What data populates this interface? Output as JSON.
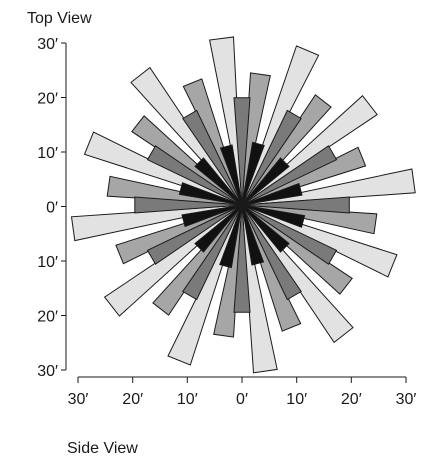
{
  "title_top": "Top View",
  "title_side": "Side View",
  "axis": {
    "y_ticks": [
      "30′",
      "20′",
      "10′",
      "0′",
      "10′",
      "20′",
      "30′"
    ],
    "x_ticks": [
      "30′",
      "20′",
      "10′",
      "0′",
      "10′",
      "20′",
      "30′"
    ]
  },
  "rose": {
    "colors": {
      "light": "#e2e2e2",
      "mid": "#a6a6a6",
      "dark": "#7a7a7a",
      "black": "#111111",
      "stroke": "#1a1a1a"
    },
    "light": [
      {
        "angle": 97,
        "length": 30.5
      },
      {
        "angle": 67,
        "length": 30.5
      },
      {
        "angle": 38,
        "length": 29.5
      },
      {
        "angle": 8,
        "length": 31.5
      },
      {
        "angle": -22,
        "length": 29.5
      },
      {
        "angle": -52,
        "length": 30
      },
      {
        "angle": -82,
        "length": 30.5
      },
      {
        "angle": -112,
        "length": 30.5
      },
      {
        "angle": -142,
        "length": 30
      },
      {
        "angle": -172,
        "length": 31
      },
      {
        "angle": 158,
        "length": 30
      },
      {
        "angle": 128,
        "length": 30
      }
    ],
    "mid": [
      {
        "angle": 82,
        "length": 24
      },
      {
        "angle": 52,
        "length": 24
      },
      {
        "angle": 22,
        "length": 23.5
      },
      {
        "angle": -8,
        "length": 24.5
      },
      {
        "angle": -38,
        "length": 24
      },
      {
        "angle": -68,
        "length": 24
      },
      {
        "angle": -98,
        "length": 24
      },
      {
        "angle": -128,
        "length": 24
      },
      {
        "angle": -158,
        "length": 24
      },
      {
        "angle": 172,
        "length": 24.5
      },
      {
        "angle": 142,
        "length": 24
      },
      {
        "angle": 112,
        "length": 24
      }
    ],
    "dark": [
      {
        "angle": 90,
        "length": 19.5
      },
      {
        "angle": 60,
        "length": 19
      },
      {
        "angle": 30,
        "length": 19
      },
      {
        "angle": 0,
        "length": 19.5
      },
      {
        "angle": -30,
        "length": 19
      },
      {
        "angle": -60,
        "length": 19
      },
      {
        "angle": -90,
        "length": 19.5
      },
      {
        "angle": -120,
        "length": 19
      },
      {
        "angle": -150,
        "length": 19
      },
      {
        "angle": 180,
        "length": 19.5
      },
      {
        "angle": 150,
        "length": 19
      },
      {
        "angle": 120,
        "length": 19
      }
    ],
    "black": [
      {
        "angle": 75,
        "length": 11.5
      },
      {
        "angle": 45,
        "length": 11
      },
      {
        "angle": 15,
        "length": 11
      },
      {
        "angle": -15,
        "length": 11.5
      },
      {
        "angle": -45,
        "length": 11
      },
      {
        "angle": -75,
        "length": 11
      },
      {
        "angle": -105,
        "length": 11.5
      },
      {
        "angle": -135,
        "length": 11
      },
      {
        "angle": -165,
        "length": 11
      },
      {
        "angle": 165,
        "length": 11.5
      },
      {
        "angle": 135,
        "length": 11
      },
      {
        "angle": 105,
        "length": 11
      }
    ]
  }
}
